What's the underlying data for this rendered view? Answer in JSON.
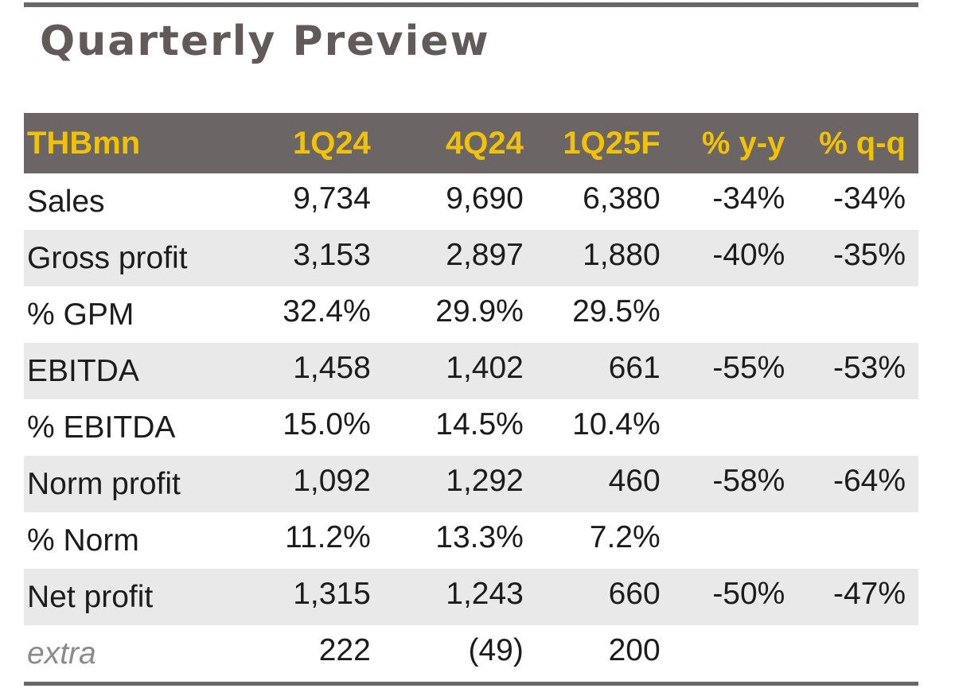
{
  "title": "Quarterly Preview",
  "table": {
    "header": {
      "label": "THBmn",
      "columns": [
        "1Q24",
        "4Q24",
        "1Q25F",
        "% y-y",
        "% q-q"
      ]
    },
    "rows": [
      {
        "label": "Sales",
        "values": [
          "9,734",
          "9,690",
          "6,380",
          "-34%",
          "-34%"
        ]
      },
      {
        "label": "Gross profit",
        "values": [
          "3,153",
          "2,897",
          "1,880",
          "-40%",
          "-35%"
        ]
      },
      {
        "label": "% GPM",
        "values": [
          "32.4%",
          "29.9%",
          "29.5%",
          "",
          ""
        ]
      },
      {
        "label": "EBITDA",
        "values": [
          "1,458",
          "1,402",
          "661",
          "-55%",
          "-53%"
        ]
      },
      {
        "label": "% EBITDA",
        "values": [
          "15.0%",
          "14.5%",
          "10.4%",
          "",
          ""
        ]
      },
      {
        "label": "Norm profit",
        "values": [
          "1,092",
          "1,292",
          "460",
          "-58%",
          "-64%"
        ]
      },
      {
        "label": "% Norm",
        "values": [
          "11.2%",
          "13.3%",
          "7.2%",
          "",
          ""
        ]
      },
      {
        "label": "Net profit",
        "values": [
          "1,315",
          "1,243",
          "660",
          "-50%",
          "-47%"
        ]
      },
      {
        "label": "extra",
        "values": [
          "222",
          "(49)",
          "200",
          "",
          ""
        ]
      }
    ]
  },
  "colors": {
    "header_background": "#6b6566",
    "header_text": "#f2c200",
    "title_text": "#625a58",
    "shaded_row": "#e9e9e9"
  }
}
